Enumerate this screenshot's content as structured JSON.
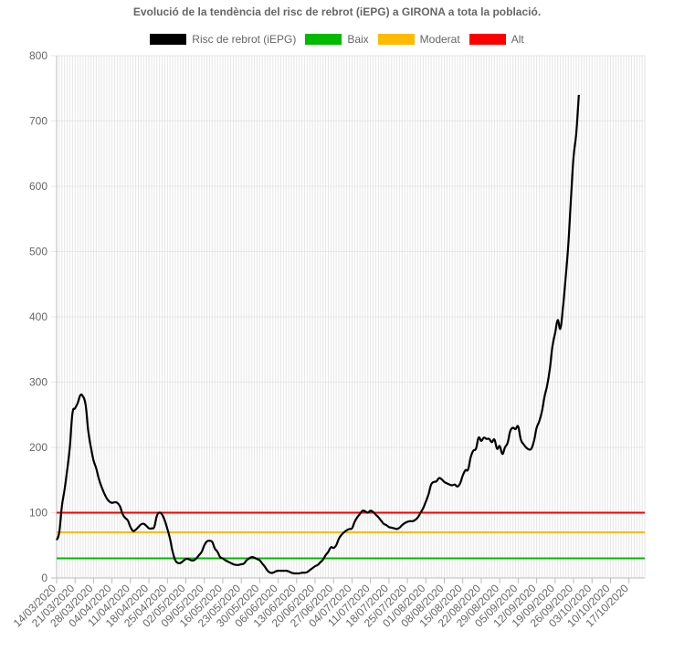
{
  "chart_data": {
    "type": "line",
    "title": "Evolució de la tendència del risc de rebrot (iEPG) a GIRONA a tota la població.",
    "ylim": [
      0,
      800
    ],
    "yticks": [
      0,
      100,
      200,
      300,
      400,
      500,
      600,
      700,
      800
    ],
    "grid": true,
    "legend_position": "top",
    "xlim": [
      "14/03/2020",
      "23/10/2020"
    ],
    "x_tick_labels": [
      "14/03/2020",
      "21/03/2020",
      "28/03/2020",
      "04/04/2020",
      "11/04/2020",
      "18/04/2020",
      "25/04/2020",
      "02/05/2020",
      "09/05/2020",
      "16/05/2020",
      "23/05/2020",
      "30/05/2020",
      "06/06/2020",
      "13/06/2020",
      "20/06/2020",
      "27/06/2020",
      "04/07/2020",
      "11/07/2020",
      "18/07/2020",
      "25/07/2020",
      "01/08/2020",
      "08/08/2020",
      "15/08/2020",
      "22/08/2020",
      "29/08/2020",
      "05/09/2020",
      "12/09/2020",
      "19/09/2020",
      "26/09/2020",
      "03/10/2020",
      "10/10/2020",
      "17/10/2020"
    ],
    "series": [
      {
        "name": "Risc de rebrot (iEPG)",
        "color": "#000000",
        "points": [
          [
            "14/03/2020",
            58
          ],
          [
            "15/03/2020",
            70
          ],
          [
            "16/03/2020",
            110
          ],
          [
            "17/03/2020",
            135
          ],
          [
            "18/03/2020",
            165
          ],
          [
            "19/03/2020",
            200
          ],
          [
            "20/03/2020",
            252
          ],
          [
            "21/03/2020",
            260
          ],
          [
            "22/03/2020",
            268
          ],
          [
            "23/03/2020",
            280
          ],
          [
            "24/03/2020",
            278
          ],
          [
            "25/03/2020",
            265
          ],
          [
            "26/03/2020",
            225
          ],
          [
            "27/03/2020",
            200
          ],
          [
            "28/03/2020",
            180
          ],
          [
            "29/03/2020",
            168
          ],
          [
            "30/03/2020",
            152
          ],
          [
            "31/03/2020",
            140
          ],
          [
            "01/04/2020",
            130
          ],
          [
            "02/04/2020",
            122
          ],
          [
            "03/04/2020",
            117
          ],
          [
            "04/04/2020",
            115
          ],
          [
            "05/04/2020",
            116
          ],
          [
            "06/04/2020",
            115
          ],
          [
            "07/04/2020",
            110
          ],
          [
            "08/04/2020",
            98
          ],
          [
            "09/04/2020",
            92
          ],
          [
            "10/04/2020",
            88
          ],
          [
            "11/04/2020",
            78
          ],
          [
            "12/04/2020",
            72
          ],
          [
            "13/04/2020",
            74
          ],
          [
            "14/04/2020",
            78
          ],
          [
            "15/04/2020",
            82
          ],
          [
            "16/04/2020",
            83
          ],
          [
            "17/04/2020",
            80
          ],
          [
            "18/04/2020",
            76
          ],
          [
            "19/04/2020",
            76
          ],
          [
            "20/04/2020",
            78
          ],
          [
            "21/04/2020",
            95
          ],
          [
            "22/04/2020",
            100
          ],
          [
            "23/04/2020",
            97
          ],
          [
            "24/04/2020",
            88
          ],
          [
            "25/04/2020",
            75
          ],
          [
            "26/04/2020",
            60
          ],
          [
            "27/04/2020",
            40
          ],
          [
            "28/04/2020",
            27
          ],
          [
            "29/04/2020",
            23
          ],
          [
            "30/04/2020",
            23
          ],
          [
            "01/05/2020",
            26
          ],
          [
            "02/05/2020",
            29
          ],
          [
            "03/05/2020",
            29
          ],
          [
            "04/05/2020",
            27
          ],
          [
            "05/05/2020",
            27
          ],
          [
            "06/05/2020",
            30
          ],
          [
            "07/05/2020",
            35
          ],
          [
            "08/05/2020",
            40
          ],
          [
            "09/05/2020",
            50
          ],
          [
            "10/05/2020",
            56
          ],
          [
            "11/05/2020",
            57
          ],
          [
            "12/05/2020",
            55
          ],
          [
            "13/05/2020",
            45
          ],
          [
            "14/05/2020",
            40
          ],
          [
            "15/05/2020",
            32
          ],
          [
            "16/05/2020",
            30
          ],
          [
            "17/05/2020",
            27
          ],
          [
            "18/05/2020",
            25
          ],
          [
            "19/05/2020",
            23
          ],
          [
            "20/05/2020",
            21
          ],
          [
            "21/05/2020",
            20
          ],
          [
            "22/05/2020",
            20
          ],
          [
            "23/05/2020",
            21
          ],
          [
            "24/05/2020",
            22
          ],
          [
            "25/05/2020",
            27
          ],
          [
            "26/05/2020",
            30
          ],
          [
            "27/05/2020",
            32
          ],
          [
            "28/05/2020",
            31
          ],
          [
            "29/05/2020",
            29
          ],
          [
            "30/05/2020",
            27
          ],
          [
            "31/05/2020",
            22
          ],
          [
            "01/06/2020",
            17
          ],
          [
            "02/06/2020",
            11
          ],
          [
            "03/06/2020",
            8
          ],
          [
            "04/06/2020",
            8
          ],
          [
            "05/06/2020",
            10
          ],
          [
            "06/06/2020",
            11
          ],
          [
            "07/06/2020",
            11
          ],
          [
            "08/06/2020",
            11
          ],
          [
            "09/06/2020",
            11
          ],
          [
            "10/06/2020",
            10
          ],
          [
            "11/06/2020",
            8
          ],
          [
            "12/06/2020",
            7
          ],
          [
            "13/06/2020",
            7
          ],
          [
            "14/06/2020",
            7
          ],
          [
            "15/06/2020",
            8
          ],
          [
            "16/06/2020",
            8
          ],
          [
            "17/06/2020",
            9
          ],
          [
            "18/06/2020",
            12
          ],
          [
            "19/06/2020",
            15
          ],
          [
            "20/06/2020",
            18
          ],
          [
            "21/06/2020",
            20
          ],
          [
            "22/06/2020",
            24
          ],
          [
            "23/06/2020",
            28
          ],
          [
            "24/06/2020",
            35
          ],
          [
            "25/06/2020",
            40
          ],
          [
            "26/06/2020",
            47
          ],
          [
            "27/06/2020",
            46
          ],
          [
            "28/06/2020",
            50
          ],
          [
            "29/06/2020",
            60
          ],
          [
            "30/06/2020",
            66
          ],
          [
            "01/07/2020",
            70
          ],
          [
            "02/07/2020",
            73
          ],
          [
            "03/07/2020",
            75
          ],
          [
            "04/07/2020",
            76
          ],
          [
            "05/07/2020",
            86
          ],
          [
            "06/07/2020",
            93
          ],
          [
            "07/07/2020",
            98
          ],
          [
            "08/07/2020",
            103
          ],
          [
            "09/07/2020",
            102
          ],
          [
            "10/07/2020",
            100
          ],
          [
            "11/07/2020",
            103
          ],
          [
            "12/07/2020",
            101
          ],
          [
            "13/07/2020",
            97
          ],
          [
            "14/07/2020",
            93
          ],
          [
            "15/07/2020",
            88
          ],
          [
            "16/07/2020",
            83
          ],
          [
            "17/07/2020",
            81
          ],
          [
            "18/07/2020",
            78
          ],
          [
            "19/07/2020",
            77
          ],
          [
            "20/07/2020",
            76
          ],
          [
            "21/07/2020",
            75
          ],
          [
            "22/07/2020",
            77
          ],
          [
            "23/07/2020",
            81
          ],
          [
            "24/07/2020",
            84
          ],
          [
            "25/07/2020",
            86
          ],
          [
            "26/07/2020",
            87
          ],
          [
            "27/07/2020",
            87
          ],
          [
            "28/07/2020",
            89
          ],
          [
            "29/07/2020",
            93
          ],
          [
            "30/07/2020",
            100
          ],
          [
            "31/07/2020",
            107
          ],
          [
            "01/08/2020",
            117
          ],
          [
            "02/08/2020",
            128
          ],
          [
            "03/08/2020",
            143
          ],
          [
            "04/08/2020",
            147
          ],
          [
            "05/08/2020",
            148
          ],
          [
            "06/08/2020",
            153
          ],
          [
            "07/08/2020",
            151
          ],
          [
            "08/08/2020",
            147
          ],
          [
            "09/08/2020",
            145
          ],
          [
            "10/08/2020",
            143
          ],
          [
            "11/08/2020",
            142
          ],
          [
            "12/08/2020",
            143
          ],
          [
            "13/08/2020",
            140
          ],
          [
            "14/08/2020",
            145
          ],
          [
            "15/08/2020",
            157
          ],
          [
            "16/08/2020",
            165
          ],
          [
            "17/08/2020",
            166
          ],
          [
            "18/08/2020",
            185
          ],
          [
            "19/08/2020",
            195
          ],
          [
            "20/08/2020",
            198
          ],
          [
            "21/08/2020",
            215
          ],
          [
            "22/08/2020",
            210
          ],
          [
            "23/08/2020",
            215
          ],
          [
            "24/08/2020",
            213
          ],
          [
            "25/08/2020",
            213
          ],
          [
            "26/08/2020",
            208
          ],
          [
            "27/08/2020",
            212
          ],
          [
            "28/08/2020",
            198
          ],
          [
            "29/08/2020",
            202
          ],
          [
            "30/08/2020",
            190
          ],
          [
            "31/08/2020",
            200
          ],
          [
            "01/09/2020",
            207
          ],
          [
            "02/09/2020",
            225
          ],
          [
            "03/09/2020",
            230
          ],
          [
            "04/09/2020",
            228
          ],
          [
            "05/09/2020",
            232
          ],
          [
            "06/09/2020",
            212
          ],
          [
            "07/09/2020",
            205
          ],
          [
            "08/09/2020",
            200
          ],
          [
            "09/09/2020",
            197
          ],
          [
            "10/09/2020",
            198
          ],
          [
            "11/09/2020",
            210
          ],
          [
            "12/09/2020",
            230
          ],
          [
            "13/09/2020",
            240
          ],
          [
            "14/09/2020",
            255
          ],
          [
            "15/09/2020",
            278
          ],
          [
            "16/09/2020",
            295
          ],
          [
            "17/09/2020",
            320
          ],
          [
            "18/09/2020",
            355
          ],
          [
            "19/09/2020",
            375
          ],
          [
            "20/09/2020",
            395
          ],
          [
            "21/09/2020",
            382
          ],
          [
            "22/09/2020",
            415
          ],
          [
            "23/09/2020",
            460
          ],
          [
            "24/09/2020",
            510
          ],
          [
            "25/09/2020",
            580
          ],
          [
            "26/09/2020",
            645
          ],
          [
            "27/09/2020",
            680
          ],
          [
            "28/09/2020",
            740
          ]
        ]
      },
      {
        "name": "Baix",
        "color": "#00bb00",
        "y": 30
      },
      {
        "name": "Moderat",
        "color": "#ffbb00",
        "y": 70
      },
      {
        "name": "Alt",
        "color": "#ff0000",
        "y": 100
      }
    ]
  }
}
